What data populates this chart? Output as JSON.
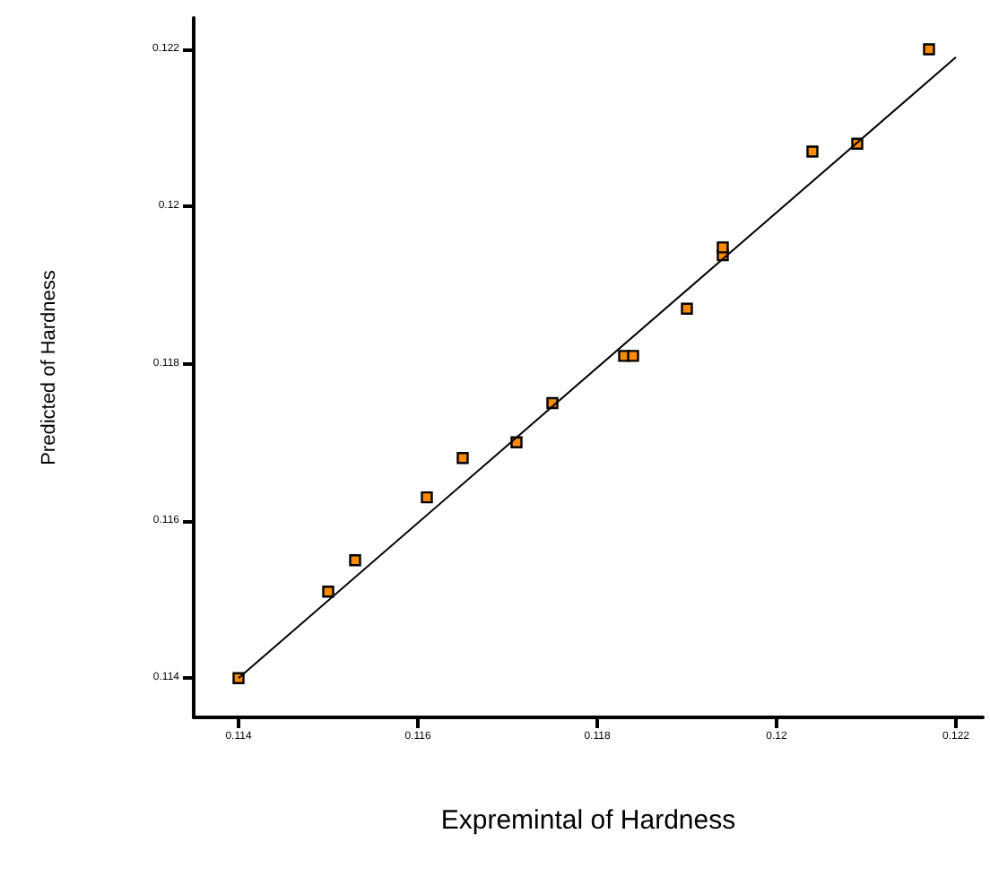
{
  "chart_data": {
    "type": "scatter",
    "xlabel": "Expremintal of Hardness",
    "ylabel": "Predicted of Hardness",
    "xlim": [
      0.1135,
      0.1223
    ],
    "xticks": [
      0.114,
      0.116,
      0.118,
      0.12,
      0.122
    ],
    "ylim": [
      0.1135,
      0.1224
    ],
    "yticks": [
      0.114,
      0.116,
      0.118,
      0.12,
      0.122
    ],
    "grid": false,
    "marker": "square",
    "series": [
      {
        "color": "#ff8c00",
        "x": [
          0.114,
          0.115,
          0.1153,
          0.1161,
          0.1165,
          0.1171,
          0.1175,
          0.1183,
          0.1184,
          0.119,
          0.1194,
          0.1194,
          0.1204,
          0.1209,
          0.1217
        ],
        "values": [
          0.114,
          0.1151,
          0.1155,
          0.1163,
          0.1168,
          0.117,
          0.1175,
          0.1181,
          0.1181,
          0.1187,
          0.11938,
          0.11948,
          0.1207,
          0.1208,
          0.122
        ]
      },
      {
        "type": "line",
        "color": "#000000",
        "x": [
          0.114,
          0.122
        ],
        "values": [
          0.114,
          0.1219
        ],
        "marker": "none",
        "line_style": "solid"
      }
    ]
  }
}
